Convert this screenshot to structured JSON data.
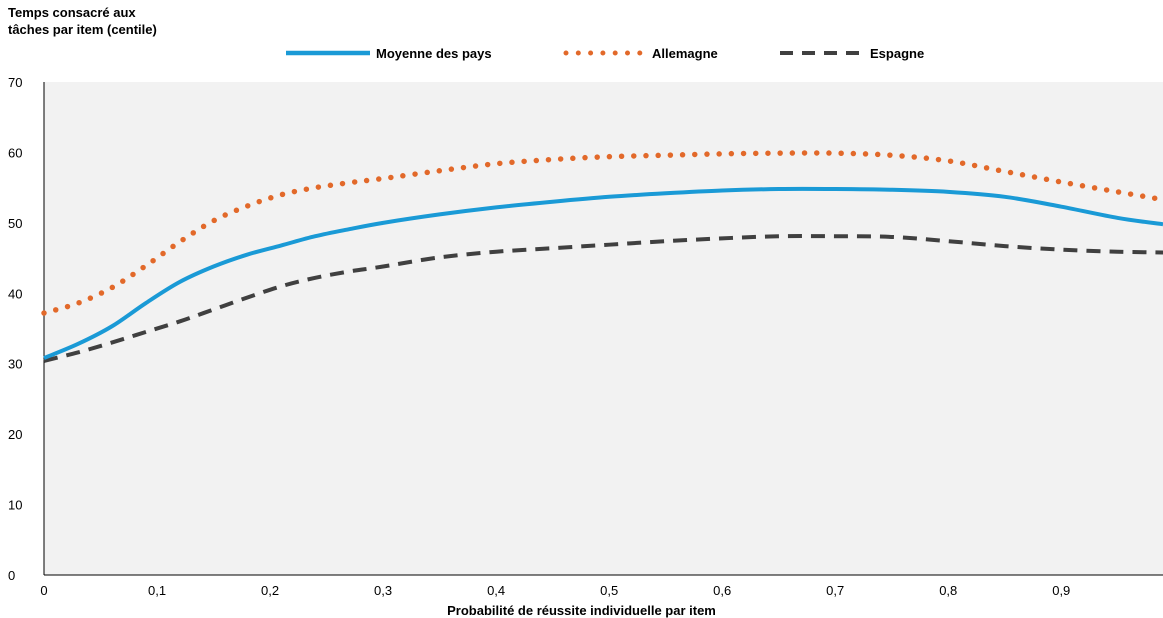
{
  "chart_data": {
    "type": "line",
    "ylabel_lines": [
      "Temps consacré aux",
      "tâches par item (centile)"
    ],
    "xlabel": "Probabilité de réussite individuelle par item",
    "xlim": [
      0,
      0.99
    ],
    "ylim": [
      0,
      70
    ],
    "x_ticks": [
      0,
      0.1,
      0.2,
      0.3,
      0.4,
      0.5,
      0.6,
      0.7,
      0.8,
      0.9
    ],
    "x_tick_labels": [
      "0",
      "0,1",
      "0,2",
      "0,3",
      "0,4",
      "0,5",
      "0,6",
      "0,7",
      "0,8",
      "0,9"
    ],
    "y_ticks": [
      0,
      10,
      20,
      30,
      40,
      50,
      60,
      70
    ],
    "y_tick_labels": [
      "0",
      "10",
      "20",
      "30",
      "40",
      "50",
      "60",
      "70"
    ],
    "grid": false,
    "legend_position": "top",
    "background": "#f2f2f2",
    "series": [
      {
        "name": "Moyenne des pays",
        "color": "#1a9ad6",
        "style": "solid",
        "x": [
          0,
          0.03,
          0.06,
          0.09,
          0.12,
          0.15,
          0.18,
          0.21,
          0.24,
          0.27,
          0.3,
          0.35,
          0.4,
          0.45,
          0.5,
          0.55,
          0.6,
          0.65,
          0.7,
          0.75,
          0.8,
          0.85,
          0.9,
          0.95,
          0.99
        ],
        "y": [
          30.8,
          32.8,
          35.3,
          38.6,
          41.6,
          43.8,
          45.5,
          46.8,
          48.1,
          49.1,
          50.0,
          51.2,
          52.2,
          53.0,
          53.7,
          54.2,
          54.6,
          54.8,
          54.8,
          54.7,
          54.4,
          53.7,
          52.3,
          50.7,
          49.8
        ]
      },
      {
        "name": "Allemagne",
        "color": "#e2692a",
        "style": "dotted",
        "x": [
          0,
          0.03,
          0.06,
          0.09,
          0.12,
          0.15,
          0.18,
          0.21,
          0.24,
          0.27,
          0.3,
          0.35,
          0.4,
          0.45,
          0.5,
          0.55,
          0.6,
          0.65,
          0.7,
          0.75,
          0.8,
          0.85,
          0.9,
          0.95,
          0.99
        ],
        "y": [
          37.2,
          38.6,
          40.8,
          43.9,
          47.3,
          50.3,
          52.4,
          54.0,
          55.0,
          55.7,
          56.3,
          57.4,
          58.4,
          59.0,
          59.4,
          59.6,
          59.8,
          59.9,
          59.9,
          59.6,
          58.8,
          57.3,
          55.8,
          54.4,
          53.3
        ]
      },
      {
        "name": "Espagne",
        "color": "#404040",
        "style": "dashed",
        "x": [
          0,
          0.03,
          0.06,
          0.09,
          0.12,
          0.15,
          0.18,
          0.21,
          0.24,
          0.27,
          0.3,
          0.35,
          0.4,
          0.45,
          0.5,
          0.55,
          0.6,
          0.65,
          0.7,
          0.75,
          0.8,
          0.85,
          0.9,
          0.95,
          0.99
        ],
        "y": [
          30.4,
          31.6,
          33.0,
          34.5,
          36.0,
          37.7,
          39.4,
          41.0,
          42.2,
          43.1,
          43.8,
          45.1,
          45.9,
          46.4,
          46.9,
          47.4,
          47.8,
          48.1,
          48.1,
          48.0,
          47.4,
          46.7,
          46.2,
          45.9,
          45.8
        ]
      }
    ]
  }
}
